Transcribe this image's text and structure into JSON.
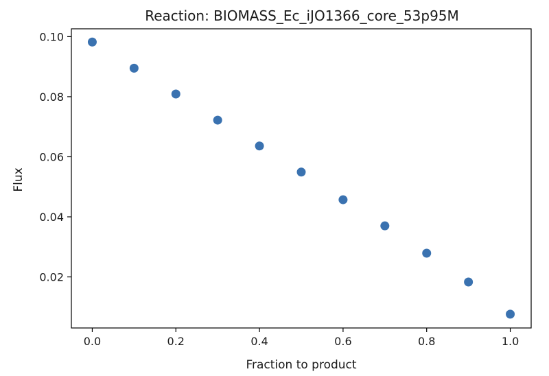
{
  "chart_data": {
    "type": "scatter",
    "title": "Reaction: BIOMASS_Ec_iJO1366_core_53p95M",
    "xlabel": "Fraction to product",
    "ylabel": "Flux",
    "x": [
      0.0,
      0.1,
      0.2,
      0.3,
      0.4,
      0.5,
      0.6,
      0.7,
      0.8,
      0.9,
      1.0
    ],
    "y": [
      0.0982,
      0.0895,
      0.0809,
      0.0722,
      0.0636,
      0.0549,
      0.0457,
      0.037,
      0.0279,
      0.0183,
      0.0076
    ],
    "xlim": [
      -0.05,
      1.05
    ],
    "ylim": [
      0.003,
      0.1026
    ],
    "xticks": [
      0.0,
      0.2,
      0.4,
      0.6,
      0.8,
      1.0
    ],
    "xtick_labels": [
      "0.0",
      "0.2",
      "0.4",
      "0.6",
      "0.8",
      "1.0"
    ],
    "yticks": [
      0.02,
      0.04,
      0.06,
      0.08,
      0.1
    ],
    "ytick_labels": [
      "0.02",
      "0.04",
      "0.06",
      "0.08",
      "0.10"
    ],
    "grid": false,
    "legend": "none",
    "marker_color": "#3a72b0"
  }
}
